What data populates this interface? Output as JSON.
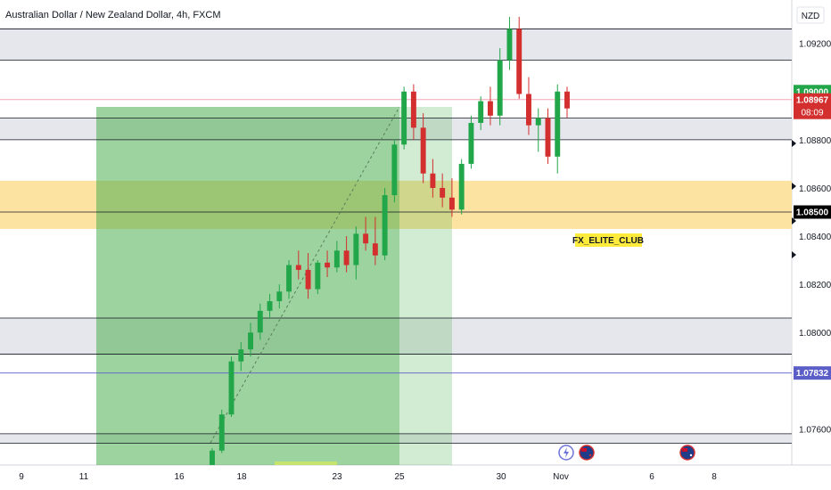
{
  "header": {
    "title": "Australian Dollar / New Zealand Dollar, 4h, FXCM",
    "currency": "NZD"
  },
  "chart_data": {
    "type": "candlestick",
    "y_ticks": [
      "1.09200",
      "1.08800",
      "1.08600",
      "1.08400",
      "1.08200",
      "1.08000",
      "1.07600"
    ],
    "y_tick_values": [
      1.092,
      1.088,
      1.086,
      1.084,
      1.082,
      1.08,
      1.076
    ],
    "ylim": [
      1.0745,
      1.0938
    ],
    "x_ticks": [
      "9",
      "11",
      "16",
      "18",
      "23",
      "25",
      "30",
      "Nov",
      "6",
      "8"
    ],
    "price_tags": {
      "last_price": "1.08967",
      "countdown": "08:09",
      "level_upper": "1.09000",
      "level_mid": "1.08500",
      "level_low": "1.07832"
    },
    "price_tag_values": {
      "last_price": 1.08967,
      "level_upper": 1.09,
      "level_mid": 1.085,
      "level_low": 1.07832
    },
    "zones": [
      {
        "type": "resistance",
        "from": 1.0913,
        "to": 1.0926,
        "color": "#e6e7ec"
      },
      {
        "type": "resistance",
        "from": 1.088,
        "to": 1.0889,
        "color": "#e6e7ec"
      },
      {
        "type": "demand",
        "from": 1.0843,
        "to": 1.0863,
        "color": "#fde3a1"
      },
      {
        "type": "support",
        "from": 1.0791,
        "to": 1.0806,
        "color": "#e6e7ec"
      },
      {
        "type": "support",
        "from": 1.0754,
        "to": 1.0758,
        "color": "#e6e7ec"
      }
    ],
    "lines": [
      1.0926,
      1.0913,
      1.0889,
      1.088,
      1.085,
      1.0806,
      1.0791,
      1.0758,
      1.0754
    ],
    "candles_sample": [
      {
        "o": 1.0745,
        "h": 1.0752,
        "l": 1.0745,
        "c": 1.0751
      },
      {
        "o": 1.0751,
        "h": 1.0768,
        "l": 1.075,
        "c": 1.0766
      },
      {
        "o": 1.0766,
        "h": 1.079,
        "l": 1.0765,
        "c": 1.0788
      },
      {
        "o": 1.0788,
        "h": 1.0796,
        "l": 1.0784,
        "c": 1.0793
      },
      {
        "o": 1.0793,
        "h": 1.0804,
        "l": 1.079,
        "c": 1.08
      },
      {
        "o": 1.08,
        "h": 1.0812,
        "l": 1.0797,
        "c": 1.0809
      },
      {
        "o": 1.0809,
        "h": 1.0816,
        "l": 1.0806,
        "c": 1.0813
      },
      {
        "o": 1.0813,
        "h": 1.082,
        "l": 1.081,
        "c": 1.0817
      },
      {
        "o": 1.0817,
        "h": 1.083,
        "l": 1.0814,
        "c": 1.0828
      },
      {
        "o": 1.0828,
        "h": 1.0834,
        "l": 1.0822,
        "c": 1.0826
      },
      {
        "o": 1.0826,
        "h": 1.0833,
        "l": 1.0814,
        "c": 1.0818
      },
      {
        "o": 1.0818,
        "h": 1.083,
        "l": 1.0816,
        "c": 1.0829
      },
      {
        "o": 1.0829,
        "h": 1.0834,
        "l": 1.0823,
        "c": 1.0827
      },
      {
        "o": 1.0827,
        "h": 1.0838,
        "l": 1.0825,
        "c": 1.0834
      },
      {
        "o": 1.0834,
        "h": 1.084,
        "l": 1.0825,
        "c": 1.0828
      },
      {
        "o": 1.0828,
        "h": 1.0844,
        "l": 1.0822,
        "c": 1.0841
      },
      {
        "o": 1.0841,
        "h": 1.0848,
        "l": 1.0834,
        "c": 1.0837
      },
      {
        "o": 1.0837,
        "h": 1.0848,
        "l": 1.0828,
        "c": 1.0832
      },
      {
        "o": 1.0832,
        "h": 1.086,
        "l": 1.083,
        "c": 1.0857
      },
      {
        "o": 1.0857,
        "h": 1.088,
        "l": 1.0854,
        "c": 1.0878
      },
      {
        "o": 1.0878,
        "h": 1.0902,
        "l": 1.0876,
        "c": 1.09
      },
      {
        "o": 1.09,
        "h": 1.0903,
        "l": 1.088,
        "c": 1.0885
      },
      {
        "o": 1.0885,
        "h": 1.0891,
        "l": 1.0862,
        "c": 1.0866
      },
      {
        "o": 1.0866,
        "h": 1.0872,
        "l": 1.0856,
        "c": 1.086
      },
      {
        "o": 1.086,
        "h": 1.0866,
        "l": 1.0852,
        "c": 1.0856
      },
      {
        "o": 1.0856,
        "h": 1.0864,
        "l": 1.0848,
        "c": 1.0851
      },
      {
        "o": 1.0851,
        "h": 1.0872,
        "l": 1.0849,
        "c": 1.087
      },
      {
        "o": 1.087,
        "h": 1.089,
        "l": 1.0868,
        "c": 1.0887
      },
      {
        "o": 1.0887,
        "h": 1.0898,
        "l": 1.0884,
        "c": 1.0896
      },
      {
        "o": 1.0896,
        "h": 1.0902,
        "l": 1.0886,
        "c": 1.089
      },
      {
        "o": 1.089,
        "h": 1.0918,
        "l": 1.0886,
        "c": 1.0913
      },
      {
        "o": 1.0913,
        "h": 1.0931,
        "l": 1.0909,
        "c": 1.0926
      },
      {
        "o": 1.0926,
        "h": 1.0931,
        "l": 1.0897,
        "c": 1.0899
      },
      {
        "o": 1.0899,
        "h": 1.0906,
        "l": 1.0882,
        "c": 1.0886
      },
      {
        "o": 1.0886,
        "h": 1.0893,
        "l": 1.0875,
        "c": 1.0889
      },
      {
        "o": 1.0889,
        "h": 1.0893,
        "l": 1.087,
        "c": 1.0873
      },
      {
        "o": 1.0873,
        "h": 1.0903,
        "l": 1.0866,
        "c": 1.09
      },
      {
        "o": 1.09,
        "h": 1.0902,
        "l": 1.0889,
        "c": 1.0893
      }
    ]
  },
  "annotations": {
    "watermark_label": "FX_ELITE_CLUB"
  },
  "colors": {
    "up": "#22a64a",
    "down": "#d32f2f",
    "long_zone": "#4caf50",
    "demand": "#fde3a1",
    "grey_zone": "#e6e7ec",
    "label_bg": "#ffeb3b",
    "last_tag": "#d32f2f",
    "green_tag": "#22a64a",
    "blue_tag": "#5b5ec7"
  }
}
